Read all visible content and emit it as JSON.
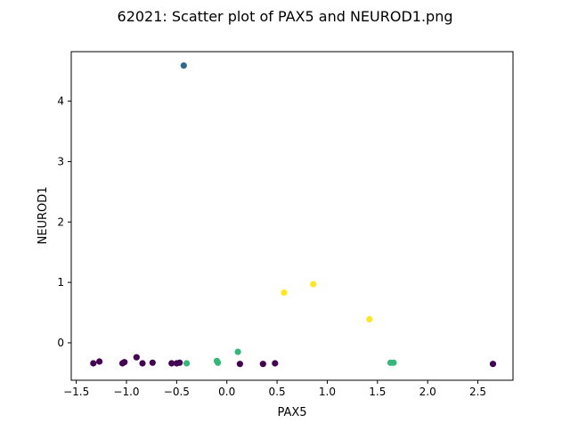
{
  "chart_data": {
    "type": "scatter",
    "title": "62021: Scatter plot of PAX5 and NEUROD1.png",
    "xlabel": "PAX5",
    "ylabel": "NEUROD1",
    "xlim": [
      -1.55,
      2.85
    ],
    "ylim": [
      -0.62,
      4.82
    ],
    "xticks": [
      -1.5,
      -1.0,
      -0.5,
      0.0,
      0.5,
      1.0,
      1.5,
      2.0,
      2.5
    ],
    "xtick_labels": [
      "−1.5",
      "−1.0",
      "−0.5",
      "0.0",
      "0.5",
      "1.0",
      "1.5",
      "2.0",
      "2.5"
    ],
    "yticks": [
      0,
      1,
      2,
      3,
      4
    ],
    "ytick_labels": [
      "0",
      "1",
      "2",
      "3",
      "4"
    ],
    "grid": false,
    "legend": "none",
    "colors": {
      "purple": "#440154",
      "blue": "#31688e",
      "green": "#35b779",
      "yellow": "#fde725"
    },
    "points": [
      {
        "x": -1.33,
        "y": -0.34,
        "color": "purple"
      },
      {
        "x": -1.27,
        "y": -0.31,
        "color": "purple"
      },
      {
        "x": -1.04,
        "y": -0.34,
        "color": "purple"
      },
      {
        "x": -1.02,
        "y": -0.32,
        "color": "purple"
      },
      {
        "x": -0.9,
        "y": -0.24,
        "color": "purple"
      },
      {
        "x": -0.84,
        "y": -0.34,
        "color": "purple"
      },
      {
        "x": -0.74,
        "y": -0.33,
        "color": "purple"
      },
      {
        "x": -0.55,
        "y": -0.34,
        "color": "purple"
      },
      {
        "x": -0.5,
        "y": -0.34,
        "color": "purple"
      },
      {
        "x": -0.47,
        "y": -0.33,
        "color": "purple"
      },
      {
        "x": 0.13,
        "y": -0.35,
        "color": "purple"
      },
      {
        "x": 0.36,
        "y": -0.35,
        "color": "purple"
      },
      {
        "x": 0.48,
        "y": -0.34,
        "color": "purple"
      },
      {
        "x": 2.65,
        "y": -0.35,
        "color": "purple"
      },
      {
        "x": -0.43,
        "y": 4.59,
        "color": "blue"
      },
      {
        "x": -0.4,
        "y": -0.34,
        "color": "green"
      },
      {
        "x": -0.1,
        "y": -0.3,
        "color": "green"
      },
      {
        "x": -0.09,
        "y": -0.33,
        "color": "green"
      },
      {
        "x": 0.11,
        "y": -0.15,
        "color": "green"
      },
      {
        "x": 1.63,
        "y": -0.33,
        "color": "green"
      },
      {
        "x": 1.66,
        "y": -0.33,
        "color": "green"
      },
      {
        "x": 0.57,
        "y": 0.83,
        "color": "yellow"
      },
      {
        "x": 0.86,
        "y": 0.97,
        "color": "yellow"
      },
      {
        "x": 1.42,
        "y": 0.39,
        "color": "yellow"
      }
    ]
  }
}
